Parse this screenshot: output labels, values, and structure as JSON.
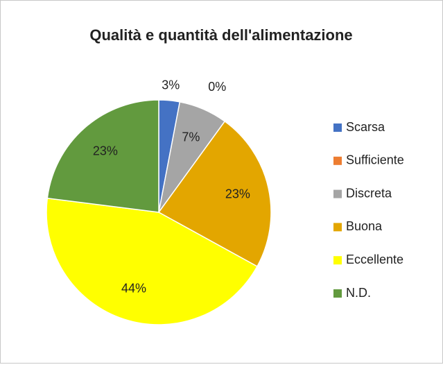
{
  "chart_data": {
    "type": "pie",
    "title": "Qualità e quantità dell'alimentazione",
    "categories": [
      "Scarsa",
      "Sufficiente",
      "Discreta",
      "Buona",
      "Eccellente",
      "N.D."
    ],
    "values": [
      3,
      0,
      7,
      23,
      44,
      23
    ],
    "value_labels": [
      "3%",
      "0%",
      "7%",
      "23%",
      "44%",
      "23%"
    ],
    "colors": [
      "#4472c4",
      "#ed7d31",
      "#a5a5a5",
      "#e3a600",
      "#ffff00",
      "#629a3e"
    ],
    "legend": "right"
  }
}
